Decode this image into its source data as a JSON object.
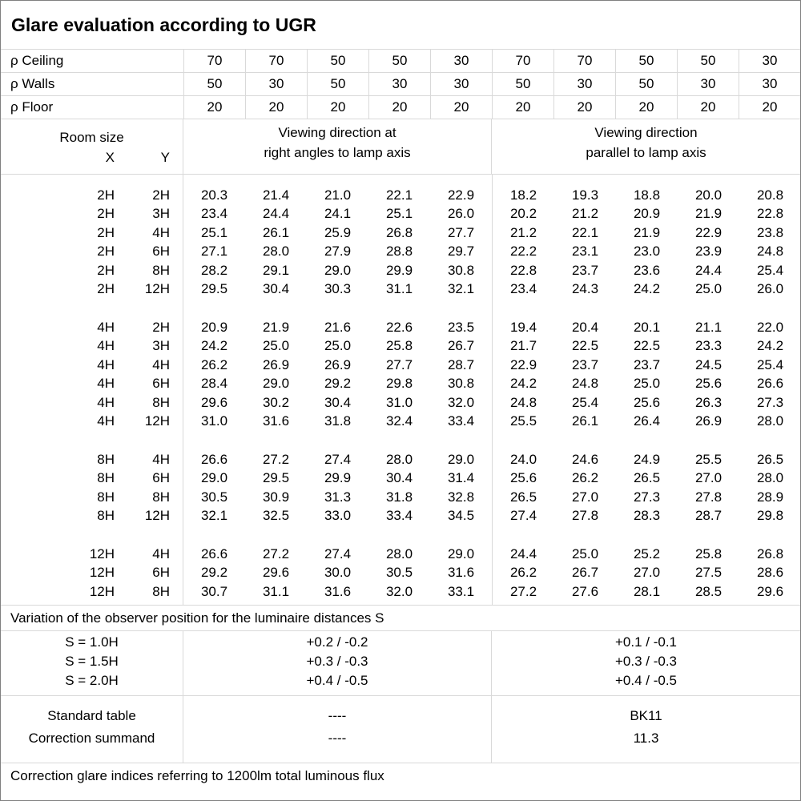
{
  "title": "Glare evaluation according to UGR",
  "reflectance_rows": [
    {
      "label": "ρ Ceiling",
      "values": [
        "70",
        "70",
        "50",
        "50",
        "30",
        "70",
        "70",
        "50",
        "50",
        "30"
      ]
    },
    {
      "label": "ρ Walls",
      "values": [
        "50",
        "30",
        "50",
        "30",
        "30",
        "50",
        "30",
        "50",
        "30",
        "30"
      ]
    },
    {
      "label": "ρ Floor",
      "values": [
        "20",
        "20",
        "20",
        "20",
        "20",
        "20",
        "20",
        "20",
        "20",
        "20"
      ]
    }
  ],
  "room_header": {
    "title": "Room size",
    "x": "X",
    "y": "Y"
  },
  "viewing_headers": {
    "right_angles": [
      "Viewing direction at",
      "right angles to lamp axis"
    ],
    "parallel": [
      "Viewing direction",
      "parallel to lamp axis"
    ]
  },
  "blocks": [
    {
      "rows": [
        {
          "x": "2H",
          "y": "2H",
          "right_angles": [
            "20.3",
            "21.4",
            "21.0",
            "22.1",
            "22.9"
          ],
          "parallel": [
            "18.2",
            "19.3",
            "18.8",
            "20.0",
            "20.8"
          ]
        },
        {
          "x": "2H",
          "y": "3H",
          "right_angles": [
            "23.4",
            "24.4",
            "24.1",
            "25.1",
            "26.0"
          ],
          "parallel": [
            "20.2",
            "21.2",
            "20.9",
            "21.9",
            "22.8"
          ]
        },
        {
          "x": "2H",
          "y": "4H",
          "right_angles": [
            "25.1",
            "26.1",
            "25.9",
            "26.8",
            "27.7"
          ],
          "parallel": [
            "21.2",
            "22.1",
            "21.9",
            "22.9",
            "23.8"
          ]
        },
        {
          "x": "2H",
          "y": "6H",
          "right_angles": [
            "27.1",
            "28.0",
            "27.9",
            "28.8",
            "29.7"
          ],
          "parallel": [
            "22.2",
            "23.1",
            "23.0",
            "23.9",
            "24.8"
          ]
        },
        {
          "x": "2H",
          "y": "8H",
          "right_angles": [
            "28.2",
            "29.1",
            "29.0",
            "29.9",
            "30.8"
          ],
          "parallel": [
            "22.8",
            "23.7",
            "23.6",
            "24.4",
            "25.4"
          ]
        },
        {
          "x": "2H",
          "y": "12H",
          "right_angles": [
            "29.5",
            "30.4",
            "30.3",
            "31.1",
            "32.1"
          ],
          "parallel": [
            "23.4",
            "24.3",
            "24.2",
            "25.0",
            "26.0"
          ]
        }
      ]
    },
    {
      "rows": [
        {
          "x": "4H",
          "y": "2H",
          "right_angles": [
            "20.9",
            "21.9",
            "21.6",
            "22.6",
            "23.5"
          ],
          "parallel": [
            "19.4",
            "20.4",
            "20.1",
            "21.1",
            "22.0"
          ]
        },
        {
          "x": "4H",
          "y": "3H",
          "right_angles": [
            "24.2",
            "25.0",
            "25.0",
            "25.8",
            "26.7"
          ],
          "parallel": [
            "21.7",
            "22.5",
            "22.5",
            "23.3",
            "24.2"
          ]
        },
        {
          "x": "4H",
          "y": "4H",
          "right_angles": [
            "26.2",
            "26.9",
            "26.9",
            "27.7",
            "28.7"
          ],
          "parallel": [
            "22.9",
            "23.7",
            "23.7",
            "24.5",
            "25.4"
          ]
        },
        {
          "x": "4H",
          "y": "6H",
          "right_angles": [
            "28.4",
            "29.0",
            "29.2",
            "29.8",
            "30.8"
          ],
          "parallel": [
            "24.2",
            "24.8",
            "25.0",
            "25.6",
            "26.6"
          ]
        },
        {
          "x": "4H",
          "y": "8H",
          "right_angles": [
            "29.6",
            "30.2",
            "30.4",
            "31.0",
            "32.0"
          ],
          "parallel": [
            "24.8",
            "25.4",
            "25.6",
            "26.3",
            "27.3"
          ]
        },
        {
          "x": "4H",
          "y": "12H",
          "right_angles": [
            "31.0",
            "31.6",
            "31.8",
            "32.4",
            "33.4"
          ],
          "parallel": [
            "25.5",
            "26.1",
            "26.4",
            "26.9",
            "28.0"
          ]
        }
      ]
    },
    {
      "rows": [
        {
          "x": "8H",
          "y": "4H",
          "right_angles": [
            "26.6",
            "27.2",
            "27.4",
            "28.0",
            "29.0"
          ],
          "parallel": [
            "24.0",
            "24.6",
            "24.9",
            "25.5",
            "26.5"
          ]
        },
        {
          "x": "8H",
          "y": "6H",
          "right_angles": [
            "29.0",
            "29.5",
            "29.9",
            "30.4",
            "31.4"
          ],
          "parallel": [
            "25.6",
            "26.2",
            "26.5",
            "27.0",
            "28.0"
          ]
        },
        {
          "x": "8H",
          "y": "8H",
          "right_angles": [
            "30.5",
            "30.9",
            "31.3",
            "31.8",
            "32.8"
          ],
          "parallel": [
            "26.5",
            "27.0",
            "27.3",
            "27.8",
            "28.9"
          ]
        },
        {
          "x": "8H",
          "y": "12H",
          "right_angles": [
            "32.1",
            "32.5",
            "33.0",
            "33.4",
            "34.5"
          ],
          "parallel": [
            "27.4",
            "27.8",
            "28.3",
            "28.7",
            "29.8"
          ]
        }
      ]
    },
    {
      "rows": [
        {
          "x": "12H",
          "y": "4H",
          "right_angles": [
            "26.6",
            "27.2",
            "27.4",
            "28.0",
            "29.0"
          ],
          "parallel": [
            "24.4",
            "25.0",
            "25.2",
            "25.8",
            "26.8"
          ]
        },
        {
          "x": "12H",
          "y": "6H",
          "right_angles": [
            "29.2",
            "29.6",
            "30.0",
            "30.5",
            "31.6"
          ],
          "parallel": [
            "26.2",
            "26.7",
            "27.0",
            "27.5",
            "28.6"
          ]
        },
        {
          "x": "12H",
          "y": "8H",
          "right_angles": [
            "30.7",
            "31.1",
            "31.6",
            "32.0",
            "33.1"
          ],
          "parallel": [
            "27.2",
            "27.6",
            "28.1",
            "28.5",
            "29.6"
          ]
        }
      ]
    }
  ],
  "variation_note": "Variation of the observer position for the luminaire distances S",
  "s_correction": {
    "labels": [
      "S = 1.0H",
      "S = 1.5H",
      "S = 2.0H"
    ],
    "right_angles": [
      "+0.2 / -0.2",
      "+0.3 / -0.3",
      "+0.4 / -0.5"
    ],
    "parallel": [
      "+0.1 / -0.1",
      "+0.3 / -0.3",
      "+0.4 / -0.5"
    ]
  },
  "standard": {
    "labels": [
      "Standard table",
      "Correction summand"
    ],
    "right_angles": [
      "----",
      "----"
    ],
    "parallel": [
      "BK11",
      "11.3"
    ]
  },
  "bottom_note": "Correction glare indices referring to 1200lm total luminous flux",
  "colors": {
    "background": "#ffffff",
    "text": "#000000",
    "grid_line": "#d9d9d9",
    "outer_border": "#808080"
  }
}
